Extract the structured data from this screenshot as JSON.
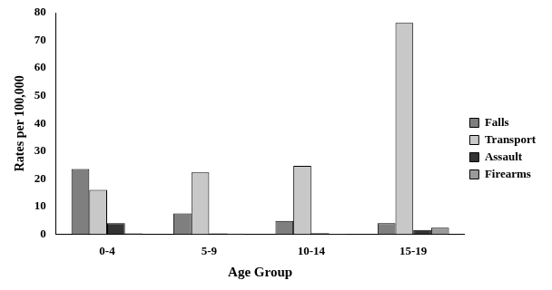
{
  "chart_data": {
    "type": "bar",
    "categories": [
      "0-4",
      "5-9",
      "10-14",
      "15-19"
    ],
    "series": [
      {
        "name": "Falls",
        "color": "#7f7f7f",
        "values": [
          23.5,
          7.5,
          4.8,
          4
        ]
      },
      {
        "name": "Transport",
        "color": "#c8c8c8",
        "values": [
          16,
          22.3,
          24.7,
          76.3
        ]
      },
      {
        "name": "Assault",
        "color": "#333333",
        "values": [
          4,
          0.3,
          0.4,
          1.5
        ]
      },
      {
        "name": "Firearms",
        "color": "#9a9a9a",
        "values": [
          0.3,
          0.2,
          0.1,
          2.3
        ]
      }
    ],
    "x_label": "Age Group",
    "y_label": "Rates per 100,000",
    "ylim": [
      0,
      80
    ],
    "yticks": [
      0,
      10,
      20,
      30,
      40,
      50,
      60,
      70,
      80
    ],
    "grid": false,
    "legend": "right"
  }
}
